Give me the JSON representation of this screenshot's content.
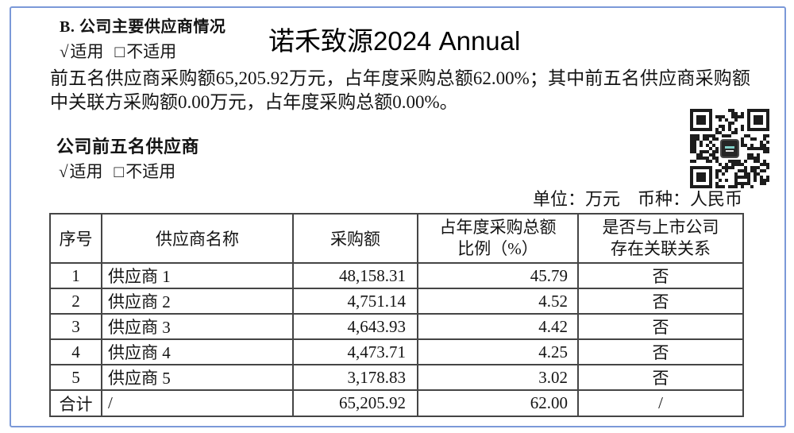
{
  "document": {
    "watermark_title": "诺禾致源2024 Annual",
    "section": {
      "title": "B. 公司主要供应商情况",
      "applicability": {
        "check": "√",
        "applicable": "适用",
        "box": "□",
        "not_applicable": "不适用"
      }
    },
    "summary": "前五名供应商采购额65,205.92万元，占年度采购总额62.00%；其中前五名供应商采购额中关联方采购额0.00万元，占年度采购总额0.00%。",
    "suppliers_section": {
      "title": "公司前五名供应商",
      "applicability": {
        "check": "√",
        "applicable": "适用",
        "box": "□",
        "not_applicable": "不适用"
      },
      "unit_note": "单位：万元　币种：人民币"
    }
  },
  "table": {
    "headers": {
      "no": "序号",
      "name": "供应商名称",
      "amount": "采购额",
      "pct": "占年度采购总额\n比例（%）",
      "related": "是否与上市公司\n存在关联关系"
    },
    "rows": [
      {
        "no": "1",
        "name": "供应商 1",
        "amount": "48,158.31",
        "pct": "45.79",
        "related": "否"
      },
      {
        "no": "2",
        "name": "供应商 2",
        "amount": "4,751.14",
        "pct": "4.52",
        "related": "否"
      },
      {
        "no": "3",
        "name": "供应商 3",
        "amount": "4,643.93",
        "pct": "4.42",
        "related": "否"
      },
      {
        "no": "4",
        "name": "供应商 4",
        "amount": "4,473.71",
        "pct": "4.25",
        "related": "否"
      },
      {
        "no": "5",
        "name": "供应商 5",
        "amount": "3,178.83",
        "pct": "3.02",
        "related": "否"
      }
    ],
    "total": {
      "no": "合计",
      "name": "/",
      "amount": "65,205.92",
      "pct": "62.00",
      "related": "/"
    }
  }
}
